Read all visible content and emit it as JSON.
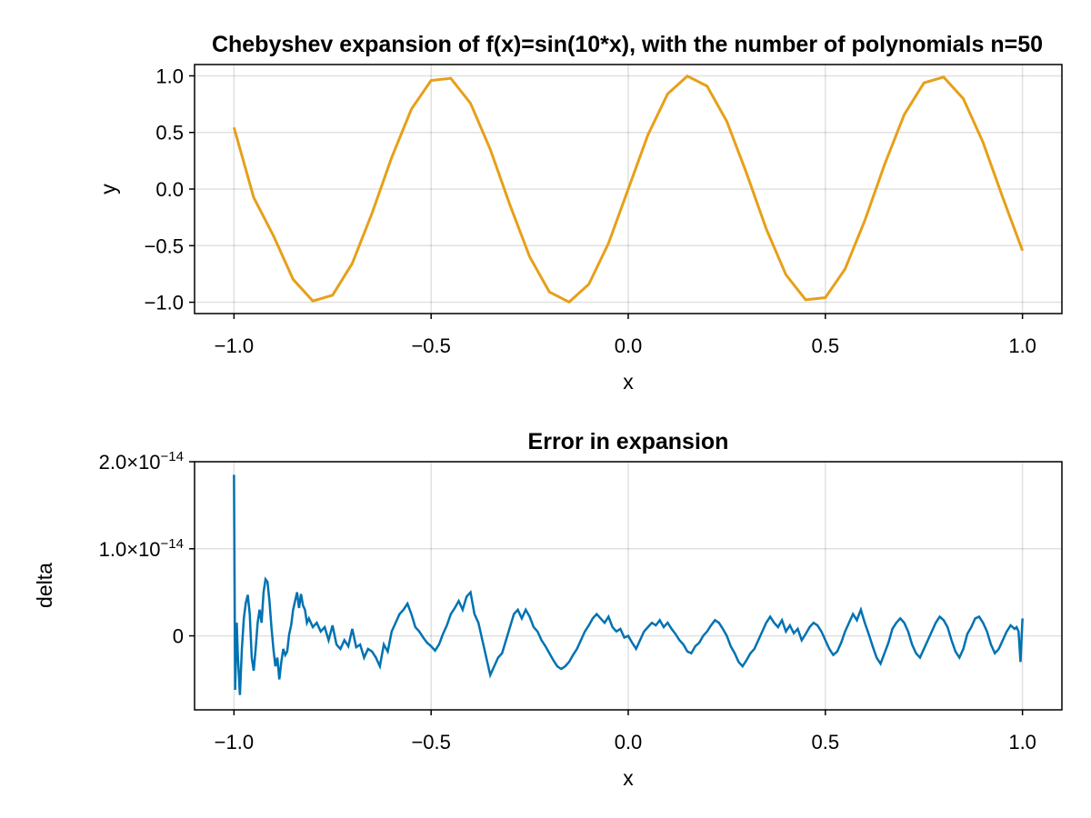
{
  "chart_data": [
    {
      "type": "line",
      "title": "Chebyshev expansion of f(x)=sin(10*x), with the number of polynomials n=50",
      "xlabel": "x",
      "ylabel": "y",
      "xlim": [
        -1.1,
        1.1
      ],
      "ylim": [
        -1.1,
        1.1
      ],
      "xticks": [
        -1.0,
        -0.5,
        0.0,
        0.5,
        1.0
      ],
      "xtick_labels": [
        "−1.0",
        "−0.5",
        "0.0",
        "0.5",
        "1.0"
      ],
      "yticks": [
        -1.0,
        -0.5,
        0.0,
        0.5,
        1.0
      ],
      "ytick_labels": [
        "−1.0",
        "−0.5",
        "0.0",
        "0.5",
        "1.0"
      ],
      "grid": true,
      "series": [
        {
          "color": "#e6a019",
          "x": [
            -1.0,
            -0.95,
            -0.9,
            -0.85,
            -0.8,
            -0.75,
            -0.7,
            -0.65,
            -0.6,
            -0.55,
            -0.5,
            -0.45,
            -0.4,
            -0.35,
            -0.3,
            -0.25,
            -0.2,
            -0.15,
            -0.1,
            -0.05,
            0.0,
            0.05,
            0.1,
            0.15,
            0.2,
            0.25,
            0.3,
            0.35,
            0.4,
            0.45,
            0.5,
            0.55,
            0.6,
            0.65,
            0.7,
            0.75,
            0.8,
            0.85,
            0.9,
            0.95,
            1.0
          ],
          "y": [
            0.544,
            -0.075,
            -0.412,
            -0.798,
            -0.989,
            -0.938,
            -0.657,
            -0.215,
            0.279,
            0.706,
            0.959,
            0.978,
            0.757,
            0.351,
            -0.141,
            -0.598,
            -0.909,
            -0.998,
            -0.841,
            -0.479,
            0.0,
            0.479,
            0.841,
            0.998,
            0.909,
            0.598,
            0.141,
            -0.351,
            -0.757,
            -0.978,
            -0.959,
            -0.706,
            -0.279,
            0.215,
            0.657,
            0.938,
            0.989,
            0.798,
            0.412,
            -0.075,
            -0.544
          ]
        }
      ]
    },
    {
      "type": "line",
      "title": "Error in expansion",
      "xlabel": "x",
      "ylabel": "delta",
      "xlim": [
        -1.1,
        1.1
      ],
      "ylim": [
        -8.5e-15,
        2e-14
      ],
      "xticks": [
        -1.0,
        -0.5,
        0.0,
        0.5,
        1.0
      ],
      "xtick_labels": [
        "−1.0",
        "−0.5",
        "0.0",
        "0.5",
        "1.0"
      ],
      "yticks": [
        0,
        1e-14,
        2e-14
      ],
      "ytick_labels": [
        {
          "base": "0",
          "exp": ""
        },
        {
          "base": "1.0×10",
          "exp": "−14"
        },
        {
          "base": "2.0×10",
          "exp": "−14"
        }
      ],
      "grid": true,
      "series": [
        {
          "color": "#0072b2",
          "x": [
            -1.0,
            -0.997,
            -0.993,
            -0.99,
            -0.985,
            -0.98,
            -0.975,
            -0.97,
            -0.965,
            -0.96,
            -0.955,
            -0.95,
            -0.945,
            -0.94,
            -0.935,
            -0.93,
            -0.925,
            -0.92,
            -0.915,
            -0.91,
            -0.905,
            -0.9,
            -0.895,
            -0.89,
            -0.885,
            -0.88,
            -0.875,
            -0.87,
            -0.865,
            -0.86,
            -0.855,
            -0.85,
            -0.845,
            -0.84,
            -0.835,
            -0.83,
            -0.825,
            -0.82,
            -0.815,
            -0.81,
            -0.8,
            -0.79,
            -0.78,
            -0.77,
            -0.76,
            -0.75,
            -0.74,
            -0.73,
            -0.72,
            -0.71,
            -0.7,
            -0.69,
            -0.68,
            -0.67,
            -0.66,
            -0.65,
            -0.64,
            -0.63,
            -0.62,
            -0.61,
            -0.6,
            -0.59,
            -0.58,
            -0.57,
            -0.56,
            -0.55,
            -0.54,
            -0.53,
            -0.52,
            -0.51,
            -0.5,
            -0.49,
            -0.48,
            -0.47,
            -0.46,
            -0.45,
            -0.44,
            -0.43,
            -0.42,
            -0.41,
            -0.4,
            -0.39,
            -0.38,
            -0.37,
            -0.36,
            -0.35,
            -0.34,
            -0.33,
            -0.32,
            -0.31,
            -0.3,
            -0.29,
            -0.28,
            -0.27,
            -0.26,
            -0.25,
            -0.24,
            -0.23,
            -0.22,
            -0.21,
            -0.2,
            -0.19,
            -0.18,
            -0.17,
            -0.16,
            -0.15,
            -0.14,
            -0.13,
            -0.12,
            -0.11,
            -0.1,
            -0.09,
            -0.08,
            -0.07,
            -0.06,
            -0.05,
            -0.04,
            -0.03,
            -0.02,
            -0.01,
            0.0,
            0.01,
            0.02,
            0.03,
            0.04,
            0.05,
            0.06,
            0.07,
            0.08,
            0.09,
            0.1,
            0.11,
            0.12,
            0.13,
            0.14,
            0.15,
            0.16,
            0.17,
            0.18,
            0.19,
            0.2,
            0.21,
            0.22,
            0.23,
            0.24,
            0.25,
            0.26,
            0.27,
            0.28,
            0.29,
            0.3,
            0.31,
            0.32,
            0.33,
            0.34,
            0.35,
            0.36,
            0.37,
            0.38,
            0.39,
            0.4,
            0.41,
            0.42,
            0.43,
            0.44,
            0.45,
            0.46,
            0.47,
            0.48,
            0.49,
            0.5,
            0.51,
            0.52,
            0.53,
            0.54,
            0.55,
            0.56,
            0.57,
            0.58,
            0.59,
            0.6,
            0.61,
            0.62,
            0.63,
            0.64,
            0.65,
            0.66,
            0.67,
            0.68,
            0.69,
            0.7,
            0.71,
            0.72,
            0.73,
            0.74,
            0.75,
            0.76,
            0.77,
            0.78,
            0.79,
            0.8,
            0.81,
            0.82,
            0.83,
            0.84,
            0.85,
            0.86,
            0.87,
            0.88,
            0.89,
            0.9,
            0.91,
            0.92,
            0.93,
            0.94,
            0.95,
            0.96,
            0.97,
            0.98,
            0.985,
            0.99,
            0.995,
            1.0
          ],
          "y": [
            1.85e-14,
            -6.2e-15,
            1.5e-15,
            -2.5e-15,
            -6.8e-15,
            -1.5e-15,
            2e-15,
            3.8e-15,
            4.7e-15,
            2.5e-15,
            -2.5e-15,
            -4e-15,
            -1.5e-15,
            1.5e-15,
            3e-15,
            1.5e-15,
            5e-15,
            6.5e-15,
            6.2e-15,
            4e-15,
            1e-15,
            -1.5e-15,
            -3.5e-15,
            -2.5e-15,
            -5e-15,
            -3e-15,
            -1.5e-15,
            -2.2e-15,
            -1.8e-15,
            2e-16,
            1.2e-15,
            3e-15,
            4e-15,
            5e-15,
            3.2e-15,
            4.8e-15,
            3.5e-15,
            3e-15,
            1.5e-15,
            2e-15,
            1e-15,
            1.5e-15,
            5e-16,
            1e-15,
            -5e-16,
            1.2e-15,
            -1e-15,
            -1.5e-15,
            -5e-16,
            -1.2e-15,
            8e-16,
            -1.3e-15,
            -1e-15,
            -2.5e-15,
            -1.5e-15,
            -1.8e-15,
            -2.5e-15,
            -3.5e-15,
            -1e-15,
            -1.8e-15,
            5e-16,
            1.5e-15,
            2.5e-15,
            3e-15,
            3.7e-15,
            2.5e-15,
            1e-15,
            5e-16,
            -2e-16,
            -8e-16,
            -1.2e-15,
            -1.7e-15,
            -1e-15,
            2e-16,
            1.2e-15,
            2.5e-15,
            3.2e-15,
            4e-15,
            3e-15,
            4.5e-15,
            5e-15,
            2.5e-15,
            1.5e-15,
            -5e-16,
            -2.5e-15,
            -4.5e-15,
            -3.5e-15,
            -2.5e-15,
            -2e-15,
            -5e-16,
            1e-15,
            2.5e-15,
            3e-15,
            2e-15,
            3e-15,
            2.2e-15,
            1e-15,
            5e-16,
            -5e-16,
            -1.2e-15,
            -2e-15,
            -2.8e-15,
            -3.5e-15,
            -3.8e-15,
            -3.5e-15,
            -3e-15,
            -2.2e-15,
            -1.5e-15,
            -5e-16,
            5e-16,
            1.2e-15,
            2e-15,
            2.5e-15,
            2e-15,
            1.5e-15,
            2.2e-15,
            1e-15,
            5e-16,
            8e-16,
            -2e-16,
            0.0,
            -8e-16,
            -1.5e-15,
            -5e-16,
            5e-16,
            1e-15,
            1.5e-15,
            1.2e-15,
            1.8e-15,
            1e-15,
            1.5e-15,
            8e-16,
            2e-16,
            -5e-16,
            -1e-15,
            -1.8e-15,
            -2e-15,
            -1.2e-15,
            -8e-16,
            0.0,
            5e-16,
            1.2e-15,
            1.8e-15,
            1.5e-15,
            8e-16,
            0.0,
            -1.2e-15,
            -2e-15,
            -3e-15,
            -3.5e-15,
            -2.8e-15,
            -2e-15,
            -1.5e-15,
            -5e-16,
            5e-16,
            1.5e-15,
            2.2e-15,
            1.5e-15,
            1e-15,
            1.8e-15,
            5e-16,
            1.2e-15,
            3e-16,
            8e-16,
            -5e-16,
            2e-16,
            1e-15,
            1.5e-15,
            1.2e-15,
            5e-16,
            -5e-16,
            -1.5e-15,
            -2.2e-15,
            -1.8e-15,
            -8e-16,
            5e-16,
            1.5e-15,
            2.5e-15,
            1.8e-15,
            3e-15,
            1.5e-15,
            2e-16,
            -1.2e-15,
            -2.5e-15,
            -3.2e-15,
            -2e-15,
            -8e-16,
            8e-16,
            1.5e-15,
            2e-15,
            1.5e-15,
            5e-16,
            -1e-15,
            -2e-15,
            -2.5e-15,
            -1.5e-15,
            -5e-16,
            5e-16,
            1.5e-15,
            2.2e-15,
            1.8e-15,
            1e-15,
            -5e-16,
            -1.8e-15,
            -2.5e-15,
            -1.5e-15,
            2e-16,
            1e-15,
            2e-15,
            2.2e-15,
            1.5e-15,
            5e-16,
            -1e-15,
            -2e-15,
            -1.5e-15,
            -5e-16,
            5e-16,
            1.2e-15,
            8e-16,
            1e-15,
            5e-16,
            -3e-15,
            2e-15
          ]
        }
      ]
    }
  ]
}
